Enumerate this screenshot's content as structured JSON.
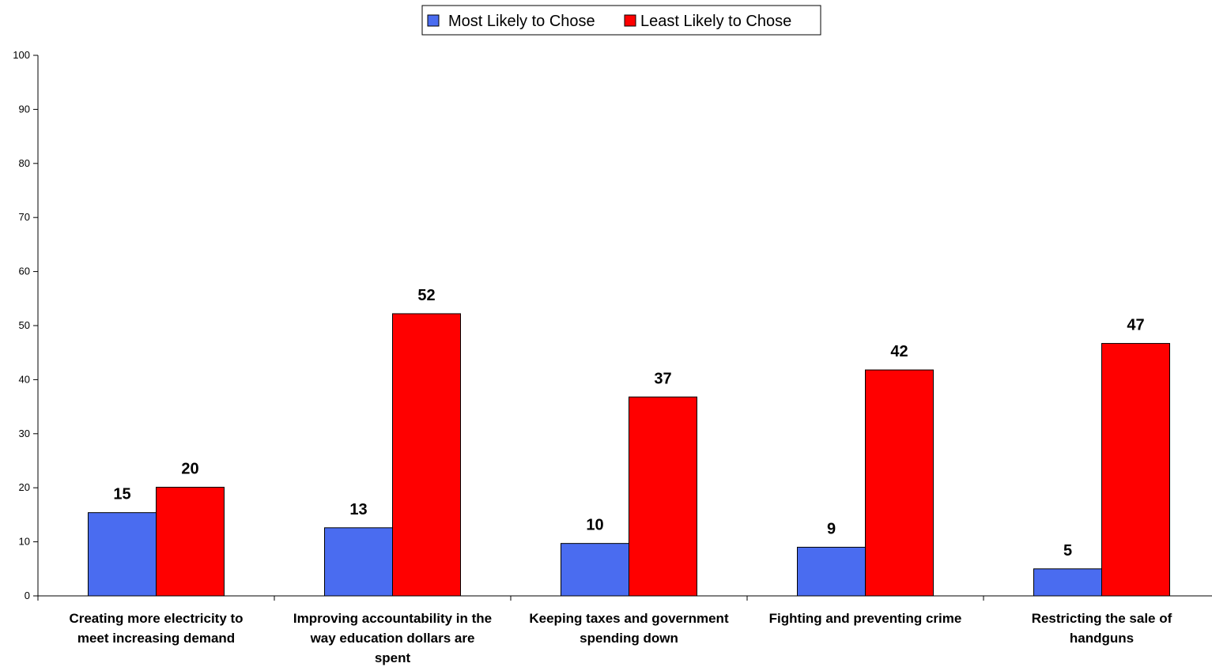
{
  "chart_data": {
    "type": "bar",
    "categories": [
      [
        "Creating more electricity to",
        "meet increasing demand"
      ],
      [
        "Improving accountability in the",
        "way education dollars are",
        "spent"
      ],
      [
        "Keeping taxes and government",
        "spending down"
      ],
      [
        "Fighting and preventing crime"
      ],
      [
        "Restricting the sale of",
        "handguns"
      ]
    ],
    "series": [
      {
        "name": "Most Likely to Chose",
        "color": "#4a6cf0",
        "values": [
          15.4,
          12.6,
          9.7,
          9.0,
          5.0
        ],
        "labels": [
          "15",
          "13",
          "10",
          "9",
          "5"
        ]
      },
      {
        "name": "Least Likely to Chose",
        "color": "#ff0000",
        "values": [
          20.1,
          52.2,
          36.8,
          41.8,
          46.7
        ],
        "labels": [
          "20",
          "52",
          "37",
          "42",
          "47"
        ]
      }
    ],
    "ylim": [
      0,
      100
    ],
    "yticks": [
      0,
      10,
      20,
      30,
      40,
      50,
      60,
      70,
      80,
      90,
      100
    ],
    "legend_position": "top-center",
    "grid": false
  }
}
